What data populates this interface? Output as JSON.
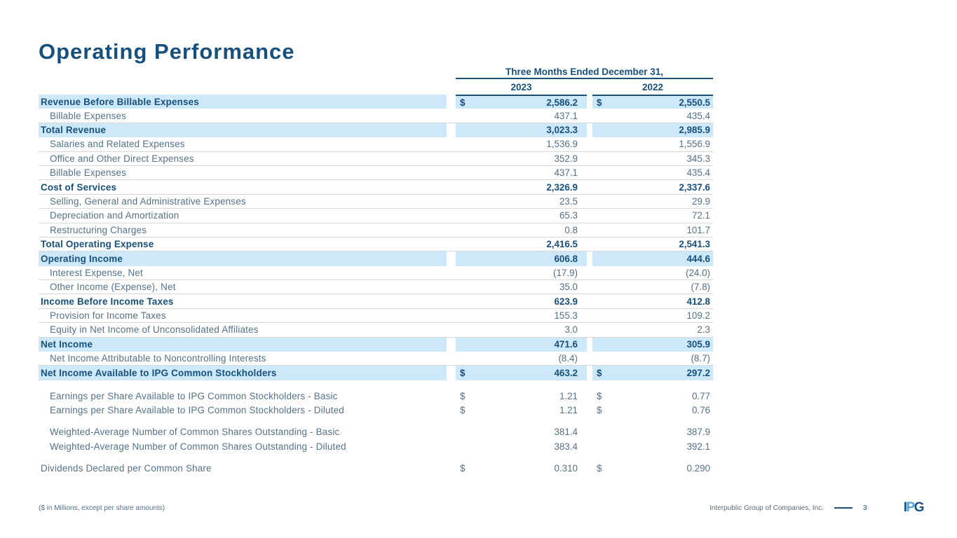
{
  "page": {
    "title": "Operating Performance"
  },
  "colors": {
    "accent_navy": "#17507d",
    "row_text": "#54718a",
    "highlight_blue": "#cde8f8",
    "separator_gray": "#d9d9d9",
    "logo_light_blue": "#4aa0d8"
  },
  "table": {
    "header": {
      "period": "Three Months Ended December 31,",
      "col_2023": "2023",
      "col_2022": "2022"
    },
    "rows": [
      {
        "label": "Revenue Before Billable Expenses",
        "v2023": "2,586.2",
        "v2022": "2,550.5",
        "bold": true,
        "highlight": true,
        "dollar": true
      },
      {
        "label": "Billable Expenses",
        "v2023": "437.1",
        "v2022": "435.4",
        "indent": true,
        "border": true
      },
      {
        "label": "Total Revenue",
        "v2023": "3,023.3",
        "v2022": "2,985.9",
        "bold": true,
        "highlight": true
      },
      {
        "label": "Salaries and Related Expenses",
        "v2023": "1,536.9",
        "v2022": "1,556.9",
        "indent": true,
        "border": true
      },
      {
        "label": "Office and Other Direct Expenses",
        "v2023": "352.9",
        "v2022": "345.3",
        "indent": true,
        "border": true
      },
      {
        "label": "Billable Expenses",
        "v2023": "437.1",
        "v2022": "435.4",
        "indent": true,
        "border": true
      },
      {
        "label": "Cost of Services",
        "v2023": "2,326.9",
        "v2022": "2,337.6",
        "bold": true,
        "border": true
      },
      {
        "label": "Selling, General and Administrative Expenses",
        "v2023": "23.5",
        "v2022": "29.9",
        "indent": true,
        "border": true
      },
      {
        "label": "Depreciation and Amortization",
        "v2023": "65.3",
        "v2022": "72.1",
        "indent": true,
        "border": true
      },
      {
        "label": "Restructuring Charges",
        "v2023": "0.8",
        "v2022": "101.7",
        "indent": true,
        "border": true
      },
      {
        "label": "Total Operating Expense",
        "v2023": "2,416.5",
        "v2022": "2,541.3",
        "bold": true,
        "border": true
      },
      {
        "label": "Operating Income",
        "v2023": "606.8",
        "v2022": "444.6",
        "bold": true,
        "highlight": true
      },
      {
        "label": "Interest Expense, Net",
        "v2023": "(17.9)",
        "v2022": "(24.0)",
        "indent": true,
        "border": true
      },
      {
        "label": "Other Income (Expense), Net",
        "v2023": "35.0",
        "v2022": "(7.8)",
        "indent": true,
        "border": true
      },
      {
        "label": "Income Before Income Taxes",
        "v2023": "623.9",
        "v2022": "412.8",
        "bold": true,
        "border": true
      },
      {
        "label": "Provision for Income Taxes",
        "v2023": "155.3",
        "v2022": "109.2",
        "indent": true,
        "border": true
      },
      {
        "label": "Equity in Net Income of Unconsolidated Affiliates",
        "v2023": "3.0",
        "v2022": "2.3",
        "indent": true,
        "border": true
      },
      {
        "label": "Net Income",
        "v2023": "471.6",
        "v2022": "305.9",
        "bold": true,
        "highlight": true
      },
      {
        "label": "Net Income Attributable to Noncontrolling Interests",
        "v2023": "(8.4)",
        "v2022": "(8.7)",
        "indent": true,
        "border": true
      },
      {
        "label": "Net Income Available to IPG Common Stockholders",
        "v2023": "463.2",
        "v2022": "297.2",
        "bold": true,
        "highlight": true,
        "dollar": true
      },
      {
        "label": "Earnings per Share Available to IPG Common Stockholders - Basic",
        "v2023": "1.21",
        "v2022": "0.77",
        "indent": true,
        "dollar": true,
        "gap_before": 12
      },
      {
        "label": "Earnings per Share Available to IPG Common Stockholders - Diluted",
        "v2023": "1.21",
        "v2022": "0.76",
        "indent": true,
        "dollar": true
      },
      {
        "label": "Weighted-Average Number of Common Shares Outstanding - Basic",
        "v2023": "381.4",
        "v2022": "387.9",
        "indent": true,
        "gap_before": 11
      },
      {
        "label": "Weighted-Average Number of Common Shares Outstanding - Diluted",
        "v2023": "383.4",
        "v2022": "392.1",
        "indent": true
      },
      {
        "label": "Dividends Declared per Common Share",
        "v2023": "0.310",
        "v2022": "0.290",
        "dollar": true,
        "gap_before": 11
      }
    ]
  },
  "footer": {
    "note": "($ in Millions, except per share amounts)",
    "company": "Interpublic Group of Companies, Inc.",
    "page_number": "3",
    "logo": {
      "i": "I",
      "p": "P",
      "g": "G"
    }
  }
}
